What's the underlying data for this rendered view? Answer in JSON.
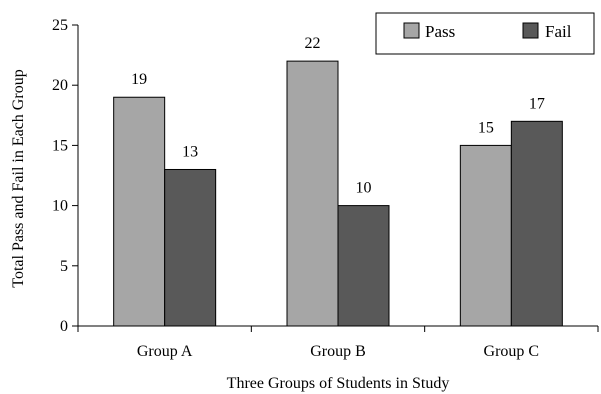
{
  "chart_data": {
    "type": "bar",
    "title": "",
    "xlabel": "Three Groups of Students in Study",
    "ylabel": "Total Pass and Fail in Each Group",
    "categories": [
      "Group A",
      "Group B",
      "Group C"
    ],
    "series": [
      {
        "name": "Pass",
        "values": [
          19,
          22,
          15
        ],
        "color": "#a6a6a6"
      },
      {
        "name": "Fail",
        "values": [
          13,
          10,
          17
        ],
        "color": "#595959"
      }
    ],
    "ylim": [
      0,
      25
    ],
    "yticks": [
      0,
      5,
      10,
      15,
      20,
      25
    ],
    "grid": false,
    "legend_position": "top-right"
  }
}
